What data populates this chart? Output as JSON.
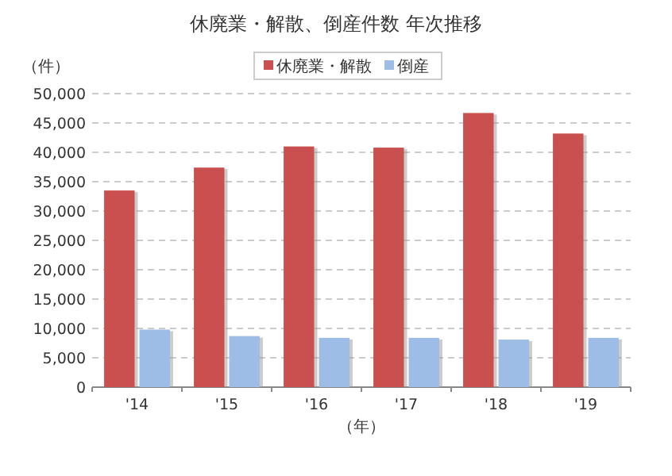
{
  "chart_data": {
    "type": "bar",
    "title": "休廃業・解散、倒産件数 年次推移",
    "ylabel": "（件）",
    "xlabel": "（年）",
    "categories": [
      "'14",
      "'15",
      "'16",
      "'17",
      "'18",
      "'19"
    ],
    "series": [
      {
        "name": "休廃業・解散",
        "color": "#c9504f",
        "values": [
          33500,
          37400,
          41000,
          40800,
          46700,
          43200
        ]
      },
      {
        "name": "倒産",
        "color": "#9dbde6",
        "values": [
          9800,
          8700,
          8400,
          8400,
          8100,
          8400
        ]
      }
    ],
    "ylim": [
      0,
      50000
    ],
    "yticks": [
      0,
      {
        "value": 5000,
        "label": "5,000"
      },
      {
        "value": 10000,
        "label": "10,000"
      },
      {
        "value": 15000,
        "label": "15,000"
      },
      {
        "value": 20000,
        "label": "20,000"
      },
      {
        "value": 25000,
        "label": "25,000"
      },
      {
        "value": 30000,
        "label": "30,000"
      },
      {
        "value": 35000,
        "label": "35,000"
      },
      {
        "value": 40000,
        "label": "40,000"
      },
      {
        "value": 45000,
        "label": "45,000"
      },
      {
        "value": 50000,
        "label": "50,000"
      }
    ],
    "grid": "y",
    "legend": "top"
  }
}
